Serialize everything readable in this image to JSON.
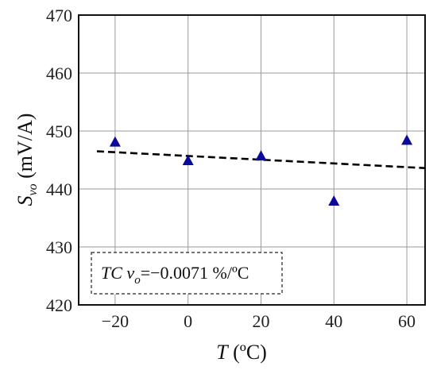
{
  "chart_data": {
    "type": "scatter",
    "xlabel_var": "T",
    "xlabel_unit": " (ºC)",
    "ylabel_var": "S",
    "ylabel_sub": "vo",
    "ylabel_unit": " (mV/A)",
    "xlim": [
      -30,
      65
    ],
    "ylim": [
      420,
      470
    ],
    "xticks": [
      -20,
      0,
      20,
      40,
      60
    ],
    "xtick_labels": [
      "−20",
      "0",
      "20",
      "40",
      "60"
    ],
    "yticks": [
      420,
      430,
      440,
      450,
      460,
      470
    ],
    "ytick_labels": [
      "420",
      "430",
      "440",
      "450",
      "460",
      "470"
    ],
    "grid": true,
    "series": [
      {
        "marker": "triangle",
        "color": "#0a0a9c",
        "x": [
          -20,
          0,
          20,
          40,
          60
        ],
        "y": [
          448.0,
          444.8,
          445.6,
          437.8,
          448.3
        ]
      }
    ],
    "fit_line": {
      "style": "dashed",
      "color": "#000000",
      "x": [
        -25,
        65
      ],
      "y": [
        446.5,
        443.6
      ]
    },
    "annotation": {
      "prefix": "TC v",
      "sub": "o",
      "suffix": "=−0.0071 %/ºC"
    }
  }
}
